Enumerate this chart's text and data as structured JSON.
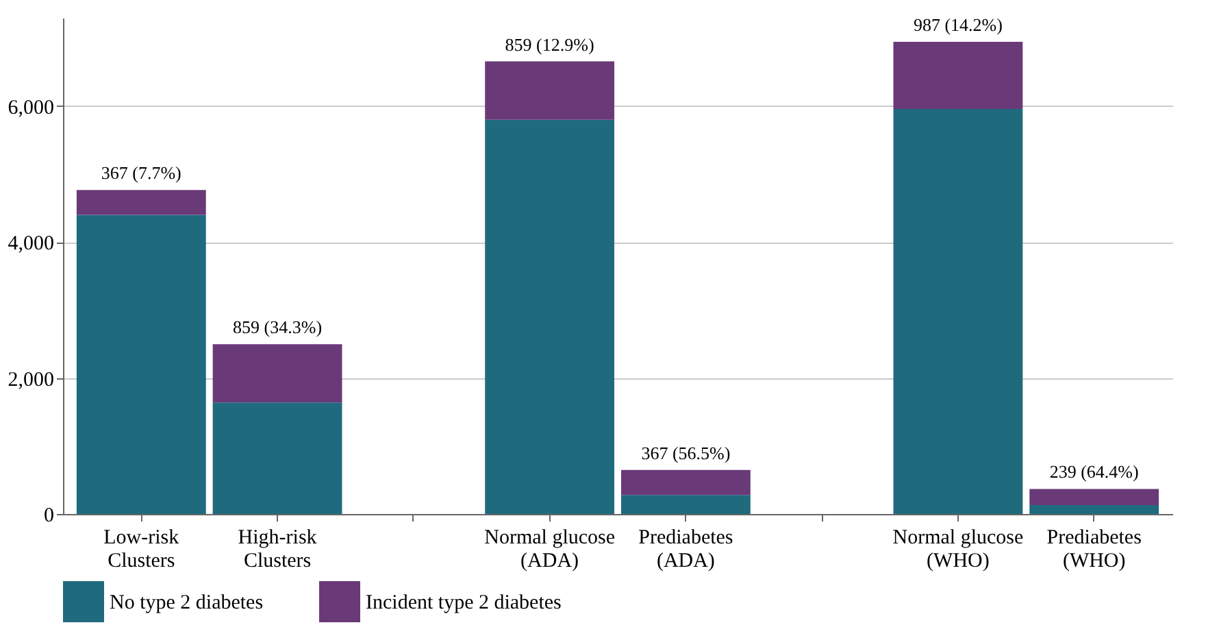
{
  "chart_data": {
    "type": "bar",
    "stacked": true,
    "categories": [
      "Low-risk Clusters",
      "High-risk Clusters",
      null,
      "Normal glucose (ADA)",
      "Prediabetes (ADA)",
      null,
      "Normal glucose (WHO)",
      "Prediabetes (WHO)"
    ],
    "series": [
      {
        "name": "No type 2 diabetes",
        "color": "#206a7e",
        "values": [
          4400,
          1640,
          null,
          5800,
          280,
          null,
          5960,
          130
        ]
      },
      {
        "name": "Incident type 2 diabetes",
        "color": "#6a3a78",
        "values": [
          367,
          859,
          null,
          859,
          367,
          null,
          987,
          239
        ],
        "value_labels": [
          "367 (7.7%)",
          "859 (34.3%)",
          null,
          "859 (12.9%)",
          "367 (56.5%)",
          null,
          "987 (14.2%)",
          "239 (64.4%)"
        ]
      }
    ],
    "ylim": [
      0,
      7300
    ],
    "yticks": [
      0,
      {
        "value": 2000,
        "label": "2,000"
      },
      {
        "value": 4000,
        "label": "4,000"
      },
      {
        "value": 6000,
        "label": "6,000"
      }
    ],
    "grid": "y",
    "legend": "bottom"
  }
}
